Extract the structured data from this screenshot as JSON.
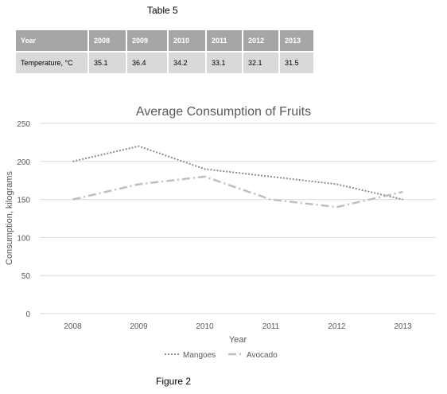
{
  "table": {
    "caption": "Table 5",
    "header": [
      "Year",
      "2008",
      "2009",
      "2010",
      "2011",
      "2012",
      "2013"
    ],
    "row": [
      "Temperature, °C",
      "35.1",
      "36.4",
      "34.2",
      "33.1",
      "32.1",
      "31.5"
    ]
  },
  "figure_caption": "Figure 2",
  "colors": {
    "mangoes": "#8c8c8c",
    "avocado": "#bfbfbf",
    "header_bg": "#a6a6a6",
    "cell_bg": "#d9d9d9"
  },
  "chart_data": {
    "type": "line",
    "title": "Average Consumption of Fruits",
    "xlabel": "Year",
    "ylabel": "Consumption, kilograms",
    "categories": [
      "2008",
      "2009",
      "2010",
      "2011",
      "2012",
      "2013"
    ],
    "ylim": [
      0,
      250
    ],
    "yticks": [
      0,
      50,
      100,
      150,
      200,
      250
    ],
    "grid": true,
    "legend_position": "bottom",
    "series": [
      {
        "name": "Mangoes",
        "values": [
          200,
          220,
          190,
          180,
          170,
          150
        ],
        "style": "dotted"
      },
      {
        "name": "Avocado",
        "values": [
          150,
          170,
          180,
          150,
          140,
          160
        ],
        "style": "dash-dot"
      }
    ]
  }
}
